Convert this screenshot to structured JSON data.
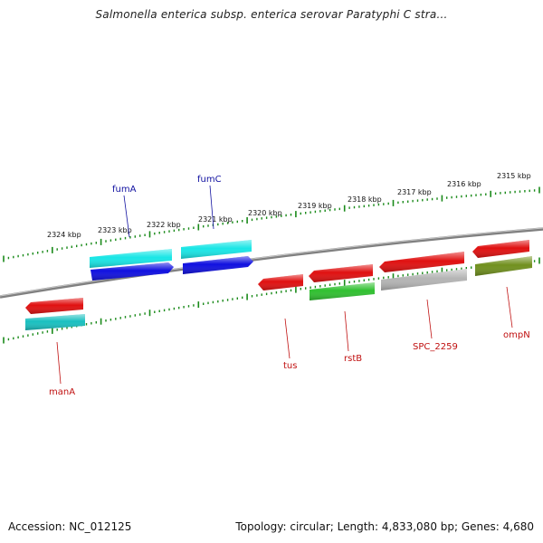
{
  "title": "Salmonella enterica subsp. enterica serovar Paratyphi C stra...",
  "footer": {
    "accession": "Accession: NC_012125",
    "stats": "Topology: circular; Length: 4,833,080 bp; Genes: 4,680"
  },
  "scale": {
    "labels": [
      "2324 kbp",
      "2323 kbp",
      "2322 kbp",
      "2321 kbp",
      "2320 kbp",
      "2319 kbp",
      "2318 kbp",
      "2317 kbp",
      "2316 kbp",
      "2315 kbp"
    ]
  },
  "genes": [
    {
      "name": "fumA",
      "strand": "+",
      "color": "#1010e0",
      "label_color": "#1010a0"
    },
    {
      "name": "fumC",
      "strand": "+",
      "color": "#1010e0",
      "label_color": "#1010a0"
    },
    {
      "name": "manA",
      "strand": "-",
      "color": "#e01010",
      "label_color": "#c01010"
    },
    {
      "name": "tus",
      "strand": "-",
      "color": "#e01010",
      "label_color": "#c01010"
    },
    {
      "name": "rstB",
      "strand": "-",
      "color": "#e01010",
      "label_color": "#c01010"
    },
    {
      "name": "SPC_2259",
      "strand": "-",
      "color": "#e01010",
      "label_color": "#c01010"
    },
    {
      "name": "ompN",
      "strand": "-",
      "color": "#e01010",
      "label_color": "#c01010"
    }
  ],
  "colors": {
    "backbone": "#808080",
    "tick": "#1a8a1a",
    "cds_plus": "#19e6e6",
    "cds_minus": "#19c0c0",
    "green": "#30c030",
    "grey": "#b4b4b4",
    "olive": "#70901e"
  }
}
